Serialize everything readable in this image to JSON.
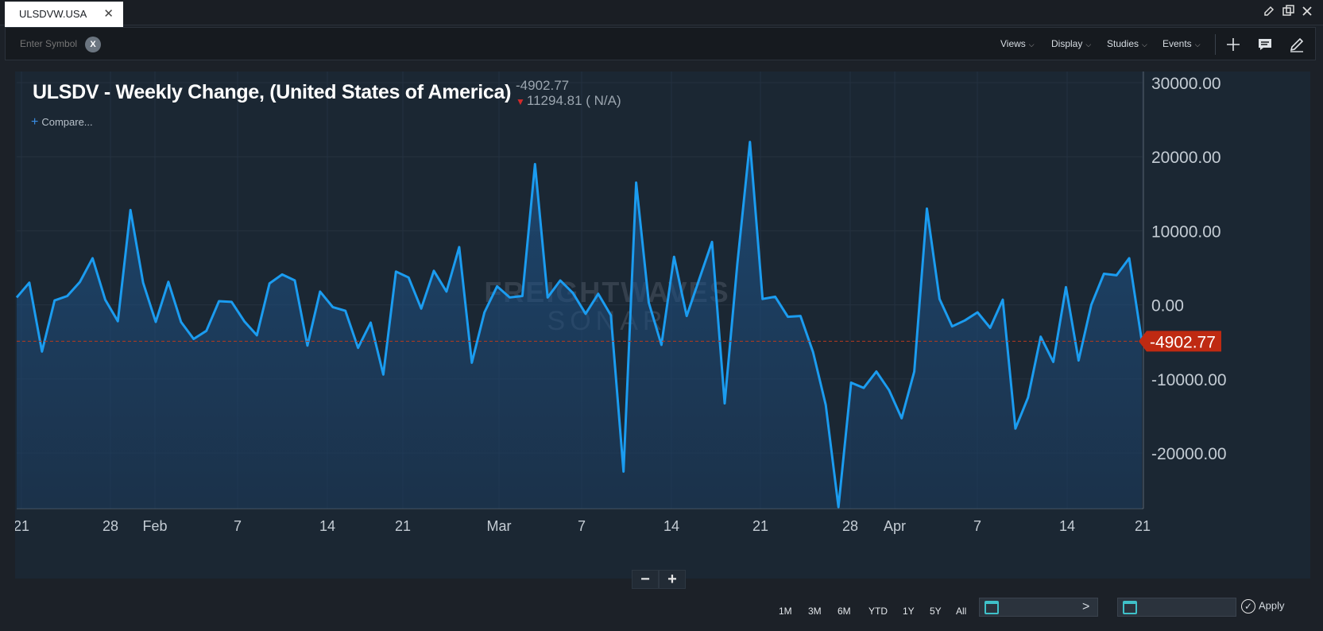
{
  "tab": {
    "label": "ULSDVW.USA",
    "close": "✕"
  },
  "toolbar": {
    "symbol_placeholder": "Enter Symbol",
    "clear_label": "X",
    "views_label": "Views",
    "display_label": "Display",
    "studies_label": "Studies",
    "events_label": "Events"
  },
  "header": {
    "title": "ULSDV - Weekly Change, (United States of America)",
    "last_value": "-4902.77",
    "change_text": "11294.81  ( N/A)",
    "compare_label": "Compare..."
  },
  "watermark": {
    "line1": "FREIGHTWAVES",
    "line2": "SONAR"
  },
  "price_tag": "-4902.77",
  "zoom": {
    "minus": "−",
    "plus": "+"
  },
  "bottom": {
    "ranges": [
      "1M",
      "3M",
      "6M",
      "YTD",
      "1Y",
      "5Y",
      "All"
    ],
    "gt": ">",
    "apply_label": "Apply"
  },
  "colors": {
    "line": "#1b9cf0",
    "accent": "#bf2a12",
    "bg": "#1b2733"
  },
  "chart_data": {
    "type": "area",
    "x_ticks": [
      "21",
      "28",
      "Feb",
      "7",
      "14",
      "21",
      "Mar",
      "7",
      "14",
      "21",
      "28",
      "Apr",
      "7",
      "14",
      "21"
    ],
    "y_ticks": [
      "30000.00",
      "20000.00",
      "10000.00",
      "0.00",
      "-10000.00",
      "-20000.00"
    ],
    "ylim": [
      -27500,
      31500
    ],
    "reference_line": -4902.77,
    "values": [
      1000,
      3000,
      -6300,
      600,
      1200,
      3100,
      6300,
      700,
      -2200,
      12800,
      3000,
      -2300,
      3100,
      -2300,
      -4600,
      -3500,
      500,
      400,
      -2200,
      -4100,
      2900,
      4100,
      3300,
      -5500,
      1800,
      -300,
      -800,
      -5800,
      -2400,
      -9400,
      4500,
      3700,
      -500,
      4600,
      1800,
      7800,
      -7800,
      -1000,
      2500,
      1000,
      1200,
      19000,
      1000,
      3300,
      1600,
      -1200,
      1500,
      -1400,
      -22500,
      16500,
      300,
      -5400,
      6500,
      -1500,
      3500,
      8500,
      -13300,
      5500,
      22000,
      800,
      1100,
      -1600,
      -1500,
      -6400,
      -13500,
      -27300,
      -10500,
      -11200,
      -9000,
      -11500,
      -15300,
      -9000,
      13000,
      800,
      -2900,
      -2100,
      -1000,
      -3100,
      700,
      -16700,
      -12500,
      -4300,
      -7700,
      2400,
      -7500,
      0,
      4200,
      4000,
      6300,
      -4900
    ]
  }
}
